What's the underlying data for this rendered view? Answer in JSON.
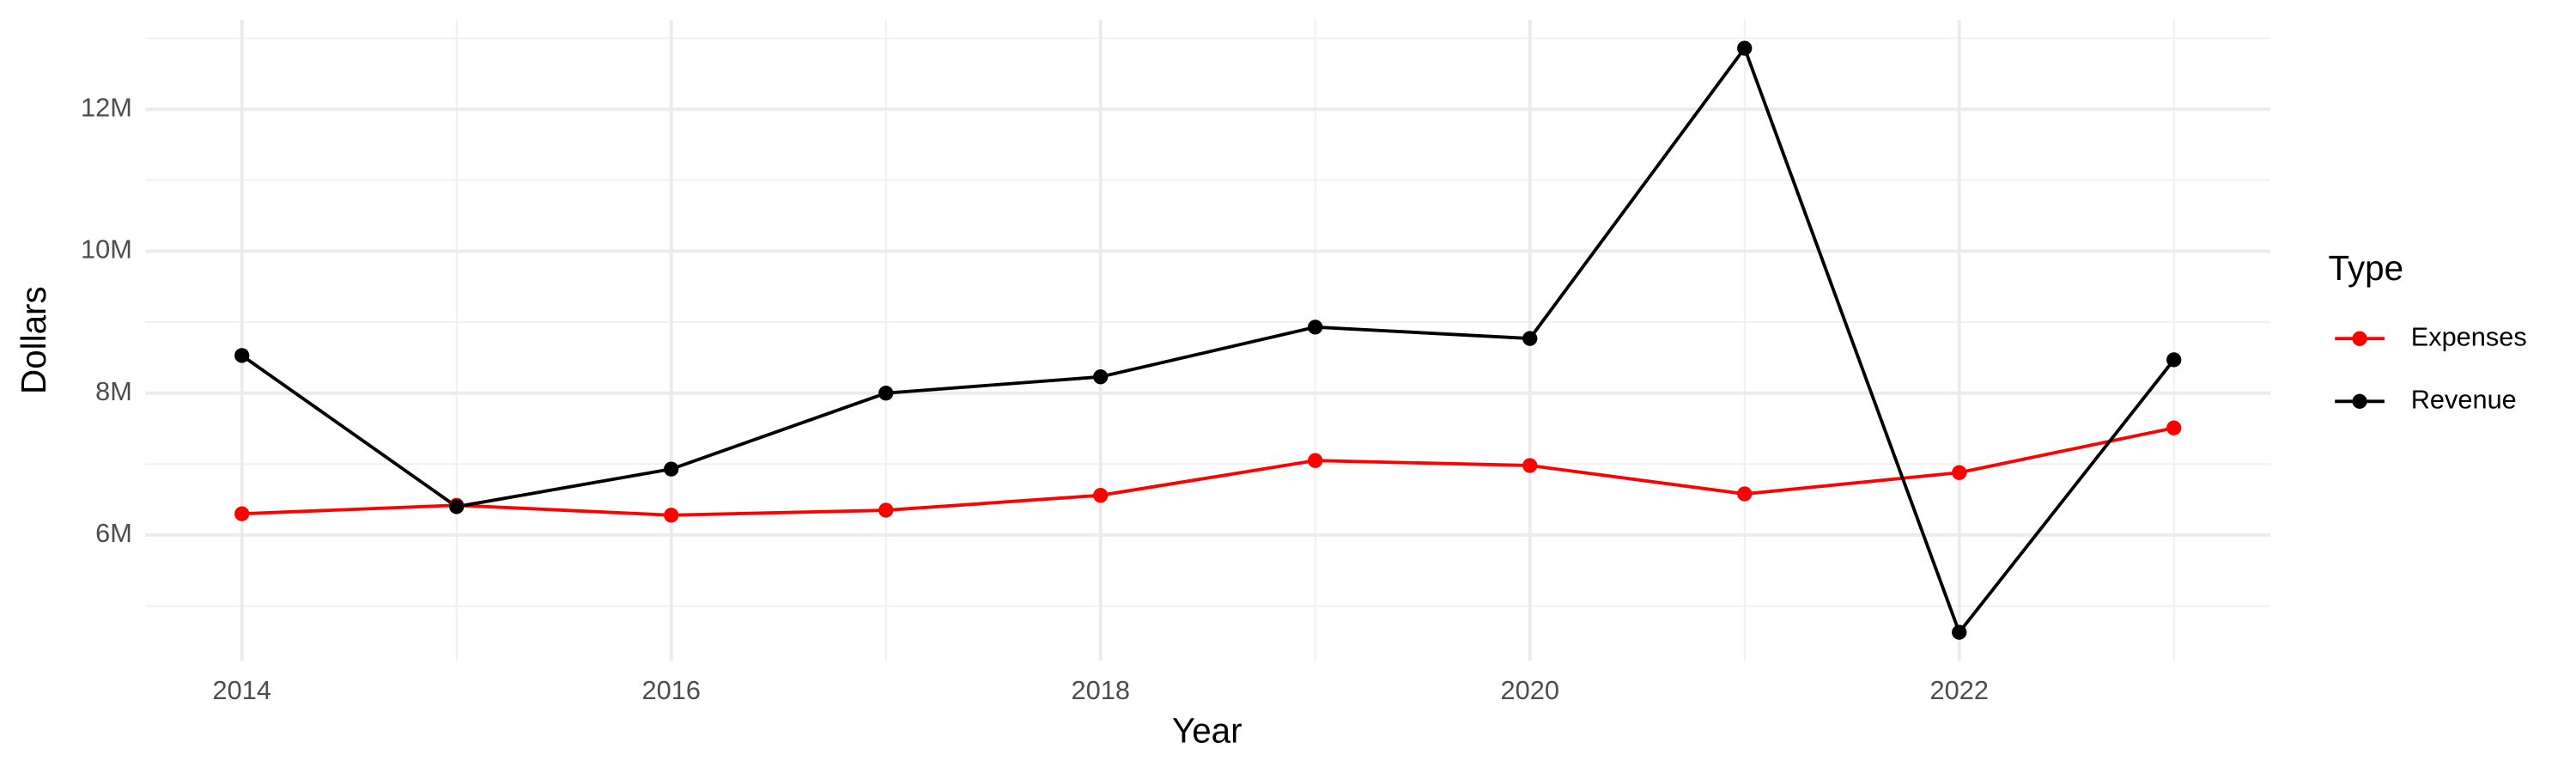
{
  "chart_data": {
    "type": "line",
    "x_label": "Year",
    "y_label": "Dollars",
    "legend_title": "Type",
    "x": [
      2014,
      2015,
      2016,
      2017,
      2018,
      2019,
      2020,
      2021,
      2022,
      2023
    ],
    "series": [
      {
        "name": "Expenses",
        "color": "#ff0000",
        "values": [
          6300000,
          6420000,
          6280000,
          6350000,
          6560000,
          7050000,
          6980000,
          6580000,
          6880000,
          7510000
        ]
      },
      {
        "name": "Revenue",
        "color": "#000000",
        "values": [
          8530000,
          6400000,
          6930000,
          8000000,
          8230000,
          8930000,
          8770000,
          12860000,
          4630000,
          8470000
        ]
      }
    ],
    "xlim": [
      2013.55,
      2023.45
    ],
    "xticks": [
      2014,
      2016,
      2018,
      2020,
      2022
    ],
    "ylim": [
      4230000,
      13260000
    ],
    "yticks": [
      {
        "value": 6000000,
        "label": "6M"
      },
      {
        "value": 8000000,
        "label": "8M"
      },
      {
        "value": 10000000,
        "label": "10M"
      },
      {
        "value": 12000000,
        "label": "12M"
      }
    ],
    "grid": true,
    "legend": "right"
  }
}
